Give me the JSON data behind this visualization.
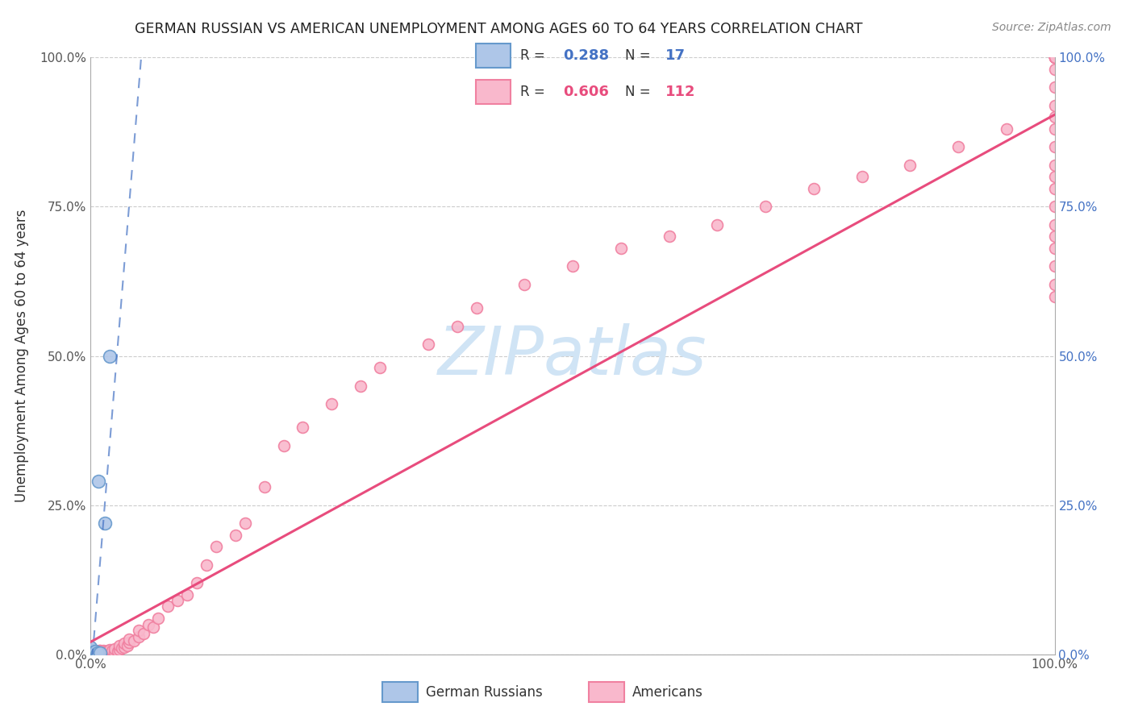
{
  "title": "GERMAN RUSSIAN VS AMERICAN UNEMPLOYMENT AMONG AGES 60 TO 64 YEARS CORRELATION CHART",
  "source": "Source: ZipAtlas.com",
  "ylabel": "Unemployment Among Ages 60 to 64 years",
  "xlim": [
    0,
    1.0
  ],
  "ylim": [
    0,
    1.0
  ],
  "ytick_positions": [
    0.0,
    0.25,
    0.5,
    0.75,
    1.0
  ],
  "ytick_labels": [
    "0.0%",
    "25.0%",
    "50.0%",
    "75.0%",
    "100.0%"
  ],
  "xtick_labels": [
    "0.0%",
    "100.0%"
  ],
  "german_russian_R": 0.288,
  "german_russian_N": 17,
  "american_R": 0.606,
  "american_N": 112,
  "legend_label_gr": "German Russians",
  "legend_label_am": "Americans",
  "color_gr_face": "#aec6e8",
  "color_gr_edge": "#6699cc",
  "color_am_face": "#f9b8cc",
  "color_am_edge": "#f080a0",
  "color_gr_line": "#4472c4",
  "color_am_line": "#e84c7d",
  "watermark": "ZIPatlas",
  "watermark_color": "#d0e4f5",
  "grid_color": "#cccccc",
  "gr_x": [
    0.0,
    0.0,
    0.0,
    0.0,
    0.0,
    0.0,
    0.003,
    0.003,
    0.004,
    0.005,
    0.005,
    0.006,
    0.007,
    0.008,
    0.01,
    0.015,
    0.02
  ],
  "gr_y": [
    0.0,
    0.0,
    0.002,
    0.005,
    0.008,
    0.012,
    0.0,
    0.003,
    0.003,
    0.002,
    0.005,
    0.0,
    0.002,
    0.29,
    0.002,
    0.22,
    0.5
  ],
  "am_x": [
    0.0,
    0.0,
    0.0,
    0.0,
    0.0,
    0.002,
    0.002,
    0.003,
    0.003,
    0.004,
    0.004,
    0.005,
    0.005,
    0.005,
    0.006,
    0.006,
    0.007,
    0.007,
    0.008,
    0.008,
    0.009,
    0.009,
    0.01,
    0.01,
    0.01,
    0.011,
    0.011,
    0.012,
    0.012,
    0.013,
    0.013,
    0.014,
    0.015,
    0.015,
    0.016,
    0.017,
    0.018,
    0.018,
    0.019,
    0.02,
    0.02,
    0.022,
    0.022,
    0.025,
    0.025,
    0.028,
    0.03,
    0.03,
    0.032,
    0.035,
    0.035,
    0.038,
    0.04,
    0.04,
    0.045,
    0.05,
    0.05,
    0.055,
    0.06,
    0.065,
    0.07,
    0.08,
    0.09,
    0.1,
    0.11,
    0.12,
    0.13,
    0.15,
    0.16,
    0.18,
    0.2,
    0.22,
    0.25,
    0.28,
    0.3,
    0.35,
    0.38,
    0.4,
    0.45,
    0.5,
    0.55,
    0.6,
    0.65,
    0.7,
    0.75,
    0.8,
    0.85,
    0.9,
    0.95,
    1.0,
    1.0,
    1.0,
    1.0,
    1.0,
    1.0,
    1.0,
    1.0,
    1.0,
    1.0,
    1.0,
    1.0,
    1.0,
    1.0,
    1.0,
    1.0,
    1.0,
    1.0,
    1.0,
    1.0,
    1.0,
    1.0,
    1.0
  ],
  "am_y": [
    0.0,
    0.002,
    0.004,
    0.006,
    0.008,
    0.0,
    0.003,
    0.001,
    0.004,
    0.002,
    0.005,
    0.0,
    0.003,
    0.006,
    0.001,
    0.004,
    0.002,
    0.005,
    0.0,
    0.003,
    0.002,
    0.006,
    0.0,
    0.003,
    0.007,
    0.002,
    0.005,
    0.001,
    0.004,
    0.003,
    0.006,
    0.002,
    0.0,
    0.005,
    0.003,
    0.002,
    0.004,
    0.007,
    0.003,
    0.005,
    0.008,
    0.003,
    0.007,
    0.004,
    0.009,
    0.005,
    0.008,
    0.015,
    0.01,
    0.012,
    0.018,
    0.015,
    0.02,
    0.025,
    0.022,
    0.03,
    0.04,
    0.035,
    0.05,
    0.045,
    0.06,
    0.08,
    0.09,
    0.1,
    0.12,
    0.15,
    0.18,
    0.2,
    0.22,
    0.28,
    0.35,
    0.38,
    0.42,
    0.45,
    0.48,
    0.52,
    0.55,
    0.58,
    0.62,
    0.65,
    0.68,
    0.7,
    0.72,
    0.75,
    0.78,
    0.8,
    0.82,
    0.85,
    0.88,
    0.6,
    0.62,
    0.65,
    0.68,
    0.7,
    0.72,
    0.75,
    0.78,
    0.8,
    0.82,
    0.85,
    0.88,
    0.9,
    0.92,
    0.95,
    0.98,
    1.0,
    1.0,
    1.0,
    1.0,
    1.0,
    1.0,
    1.0
  ]
}
